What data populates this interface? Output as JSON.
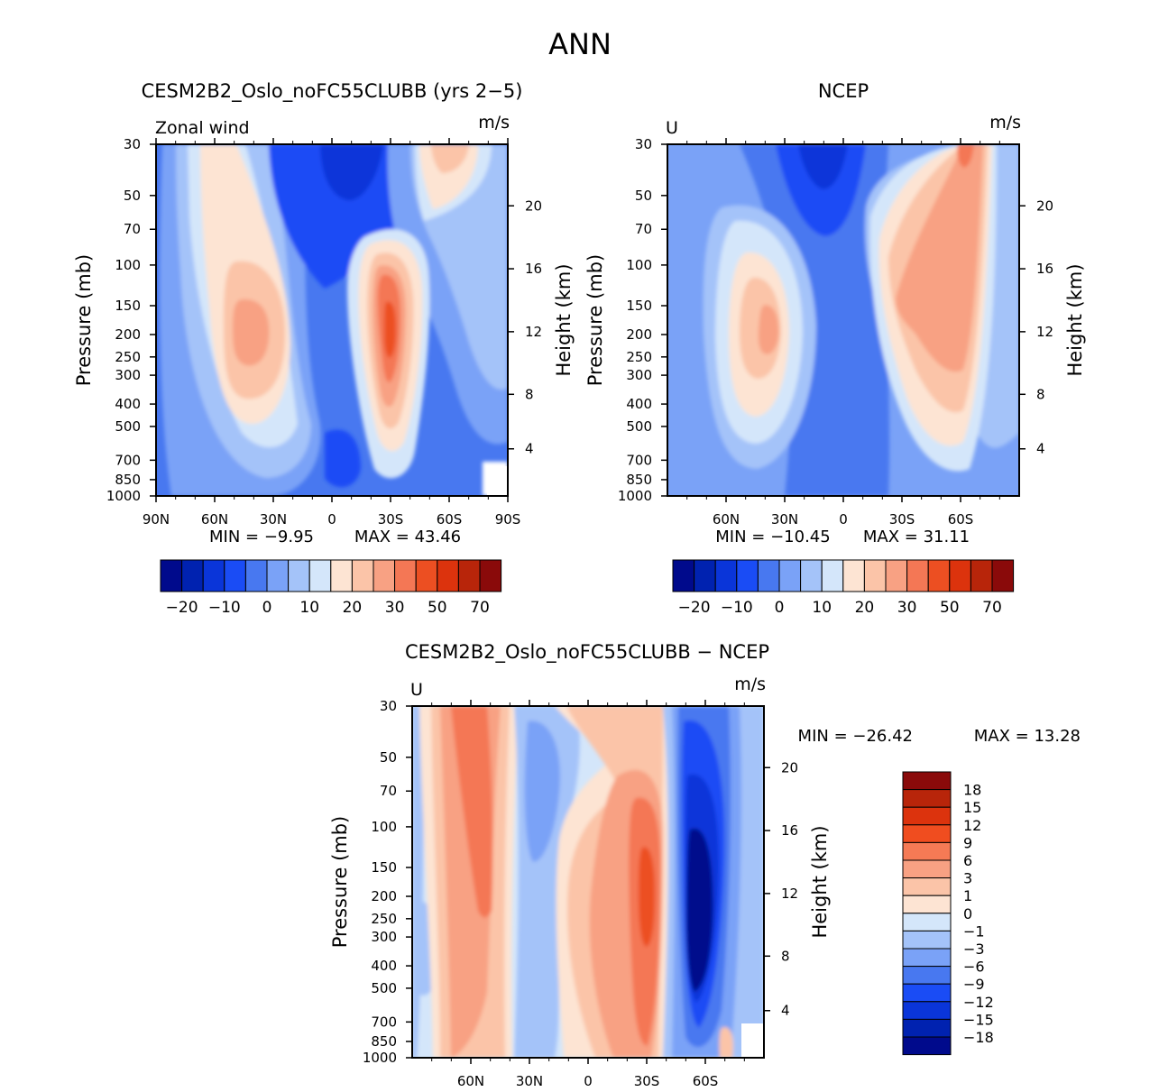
{
  "figure": {
    "title": "ANN",
    "units": "m/s"
  },
  "chart_data": [
    {
      "type": "contour",
      "id": "model",
      "title": "CESM2B2_Oslo_noFC55CLUBB (yrs 2−5)",
      "variable_label": "Zonal wind",
      "units": "m/s",
      "ylabel": "Pressure (mb)",
      "y2label": "Height (km)",
      "xlim": [
        90,
        -90
      ],
      "x_ticks": [
        "90N",
        "60N",
        "30N",
        "0",
        "30S",
        "60S",
        "90S"
      ],
      "x_tick_values": [
        90,
        60,
        30,
        0,
        -30,
        -60,
        -90
      ],
      "y_ticks": [
        "30",
        "50",
        "70",
        "100",
        "150",
        "200",
        "250",
        "300",
        "400",
        "500",
        "700",
        "850",
        "1000"
      ],
      "height_ticks": [
        "4",
        "8",
        "12",
        "16",
        "20"
      ],
      "min_label": "MIN = −9.95",
      "max_label": "MAX = 43.46",
      "min": -9.95,
      "max": 43.46,
      "features": [
        {
          "name": "northern jet core",
          "lat": 45,
          "p": 200,
          "value": 22
        },
        {
          "name": "southern jet core",
          "lat": -30,
          "p": 200,
          "value": 43
        }
      ],
      "colorbar": {
        "orientation": "horizontal",
        "levels": [
          -25,
          -20,
          -15,
          -10,
          -5,
          0,
          5,
          10,
          15,
          20,
          25,
          30,
          40,
          50,
          60,
          70
        ],
        "labels": [
          "−20",
          "−10",
          "0",
          "10",
          "20",
          "30",
          "50",
          "70"
        ],
        "colors": [
          "#000a8c",
          "#0022b0",
          "#0a35d9",
          "#1a4cf5",
          "#4878f0",
          "#7aa2f7",
          "#a4c3f9",
          "#d4e6fa",
          "#fde4d3",
          "#fbc4a8",
          "#f8a183",
          "#f47755",
          "#ec4f22",
          "#dc330d",
          "#b8250a",
          "#8a0a0a"
        ]
      }
    },
    {
      "type": "contour",
      "id": "obs",
      "title": "NCEP",
      "variable_label": "U",
      "units": "m/s",
      "ylabel": "Pressure (mb)",
      "y2label": "Height (km)",
      "xlim": [
        90,
        -90
      ],
      "x_ticks": [
        "60N",
        "30N",
        "0",
        "30S",
        "60S"
      ],
      "x_tick_values": [
        60,
        30,
        0,
        -30,
        -60
      ],
      "y_ticks": [
        "30",
        "50",
        "70",
        "100",
        "150",
        "200",
        "250",
        "300",
        "400",
        "500",
        "700",
        "850",
        "1000"
      ],
      "height_ticks": [
        "4",
        "8",
        "12",
        "16",
        "20"
      ],
      "min_label": "MIN = −10.45",
      "max_label": "MAX = 31.11",
      "min": -10.45,
      "max": 31.11,
      "colorbar": {
        "orientation": "horizontal",
        "labels": [
          "−20",
          "−10",
          "0",
          "10",
          "20",
          "30",
          "50",
          "70"
        ]
      }
    },
    {
      "type": "contour",
      "id": "diff",
      "title": "CESM2B2_Oslo_noFC55CLUBB − NCEP",
      "variable_label": "U",
      "units": "m/s",
      "ylabel": "Pressure (mb)",
      "y2label": "Height (km)",
      "xlim": [
        90,
        -90
      ],
      "x_ticks": [
        "60N",
        "30N",
        "0",
        "30S",
        "60S"
      ],
      "x_tick_values": [
        60,
        30,
        0,
        -30,
        -60
      ],
      "y_ticks": [
        "30",
        "50",
        "70",
        "100",
        "150",
        "200",
        "250",
        "300",
        "400",
        "500",
        "700",
        "850",
        "1000"
      ],
      "height_ticks": [
        "4",
        "8",
        "12",
        "16",
        "20"
      ],
      "min_label": "MIN = −26.42",
      "max_label": "MAX = 13.28",
      "min": -26.42,
      "max": 13.28,
      "colorbar": {
        "orientation": "vertical",
        "labels": [
          "18",
          "15",
          "12",
          "9",
          "6",
          "3",
          "1",
          "0",
          "−1",
          "−3",
          "−6",
          "−9",
          "−12",
          "−15",
          "−18"
        ],
        "colors": [
          "#8a0a0a",
          "#b8250a",
          "#dc330d",
          "#f04d1f",
          "#f57a55",
          "#f8a183",
          "#fbc4a8",
          "#fde4d3",
          "#d4e6fa",
          "#a4c3f9",
          "#7aa2f7",
          "#4878f0",
          "#1a4cf5",
          "#0a35d9",
          "#0022b0",
          "#000a8c"
        ]
      }
    }
  ]
}
